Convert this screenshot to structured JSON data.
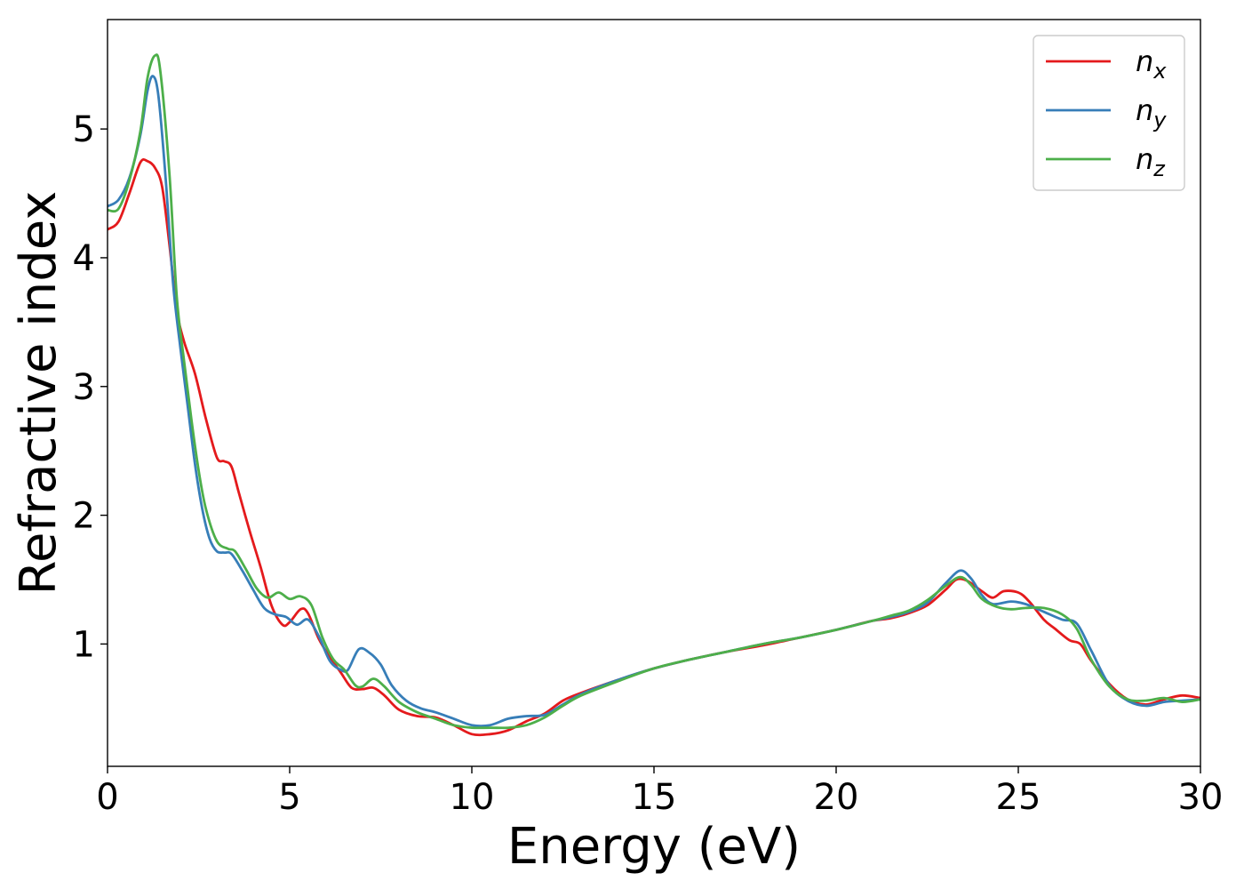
{
  "chart_data": {
    "type": "line",
    "title": "",
    "xlabel": "Energy (eV)",
    "ylabel": "Refractive index",
    "xlim": [
      0,
      30
    ],
    "ylim": [
      0.05,
      5.85
    ],
    "xticks": [
      0,
      5,
      10,
      15,
      20,
      25,
      30
    ],
    "yticks": [
      1,
      2,
      3,
      4,
      5
    ],
    "grid": false,
    "legend_position": "top-right",
    "series": [
      {
        "name": "n",
        "subscript": "x",
        "color": "#e41a1c",
        "points": [
          [
            0,
            4.22
          ],
          [
            0.3,
            4.28
          ],
          [
            0.6,
            4.5
          ],
          [
            0.9,
            4.74
          ],
          [
            1.1,
            4.75
          ],
          [
            1.3,
            4.7
          ],
          [
            1.5,
            4.55
          ],
          [
            1.7,
            4.1
          ],
          [
            1.9,
            3.6
          ],
          [
            2.1,
            3.35
          ],
          [
            2.4,
            3.1
          ],
          [
            2.7,
            2.75
          ],
          [
            3.0,
            2.45
          ],
          [
            3.2,
            2.42
          ],
          [
            3.4,
            2.38
          ],
          [
            3.6,
            2.18
          ],
          [
            3.9,
            1.88
          ],
          [
            4.2,
            1.6
          ],
          [
            4.5,
            1.3
          ],
          [
            4.8,
            1.15
          ],
          [
            5.0,
            1.17
          ],
          [
            5.3,
            1.27
          ],
          [
            5.5,
            1.24
          ],
          [
            5.8,
            1.04
          ],
          [
            6.1,
            0.9
          ],
          [
            6.4,
            0.78
          ],
          [
            6.7,
            0.66
          ],
          [
            7.0,
            0.65
          ],
          [
            7.3,
            0.66
          ],
          [
            7.6,
            0.6
          ],
          [
            8.0,
            0.49
          ],
          [
            8.5,
            0.44
          ],
          [
            9.0,
            0.43
          ],
          [
            9.5,
            0.37
          ],
          [
            10.0,
            0.3
          ],
          [
            10.5,
            0.3
          ],
          [
            11.0,
            0.33
          ],
          [
            11.5,
            0.4
          ],
          [
            12.0,
            0.46
          ],
          [
            12.5,
            0.56
          ],
          [
            13.0,
            0.62
          ],
          [
            14.0,
            0.72
          ],
          [
            15.0,
            0.81
          ],
          [
            16.0,
            0.88
          ],
          [
            17.0,
            0.94
          ],
          [
            18.0,
            0.99
          ],
          [
            19.0,
            1.05
          ],
          [
            20.0,
            1.11
          ],
          [
            21.0,
            1.18
          ],
          [
            21.5,
            1.2
          ],
          [
            22.0,
            1.24
          ],
          [
            22.5,
            1.3
          ],
          [
            23.0,
            1.42
          ],
          [
            23.3,
            1.5
          ],
          [
            23.6,
            1.49
          ],
          [
            24.0,
            1.41
          ],
          [
            24.3,
            1.36
          ],
          [
            24.6,
            1.41
          ],
          [
            25.0,
            1.4
          ],
          [
            25.3,
            1.33
          ],
          [
            25.7,
            1.19
          ],
          [
            26.0,
            1.12
          ],
          [
            26.4,
            1.03
          ],
          [
            26.7,
            1.0
          ],
          [
            27.0,
            0.87
          ],
          [
            27.5,
            0.69
          ],
          [
            28.0,
            0.57
          ],
          [
            28.5,
            0.53
          ],
          [
            29.0,
            0.57
          ],
          [
            29.5,
            0.6
          ],
          [
            30.0,
            0.58
          ]
        ]
      },
      {
        "name": "n",
        "subscript": "y",
        "color": "#377eb8",
        "points": [
          [
            0,
            4.4
          ],
          [
            0.3,
            4.45
          ],
          [
            0.6,
            4.62
          ],
          [
            0.9,
            4.95
          ],
          [
            1.1,
            5.3
          ],
          [
            1.25,
            5.41
          ],
          [
            1.4,
            5.25
          ],
          [
            1.6,
            4.6
          ],
          [
            1.8,
            3.8
          ],
          [
            2.0,
            3.3
          ],
          [
            2.2,
            2.85
          ],
          [
            2.4,
            2.4
          ],
          [
            2.6,
            2.05
          ],
          [
            2.8,
            1.82
          ],
          [
            3.0,
            1.72
          ],
          [
            3.2,
            1.71
          ],
          [
            3.4,
            1.7
          ],
          [
            3.7,
            1.57
          ],
          [
            4.0,
            1.42
          ],
          [
            4.3,
            1.28
          ],
          [
            4.6,
            1.23
          ],
          [
            4.9,
            1.21
          ],
          [
            5.2,
            1.15
          ],
          [
            5.5,
            1.19
          ],
          [
            5.8,
            1.06
          ],
          [
            6.1,
            0.87
          ],
          [
            6.4,
            0.8
          ],
          [
            6.6,
            0.8
          ],
          [
            6.9,
            0.96
          ],
          [
            7.2,
            0.93
          ],
          [
            7.5,
            0.84
          ],
          [
            7.8,
            0.68
          ],
          [
            8.2,
            0.56
          ],
          [
            8.6,
            0.5
          ],
          [
            9.0,
            0.47
          ],
          [
            9.5,
            0.42
          ],
          [
            10.0,
            0.37
          ],
          [
            10.5,
            0.37
          ],
          [
            11.0,
            0.42
          ],
          [
            11.5,
            0.44
          ],
          [
            12.0,
            0.45
          ],
          [
            12.5,
            0.53
          ],
          [
            13.0,
            0.61
          ],
          [
            14.0,
            0.72
          ],
          [
            15.0,
            0.81
          ],
          [
            16.0,
            0.88
          ],
          [
            17.0,
            0.94
          ],
          [
            18.0,
            1.0
          ],
          [
            19.0,
            1.05
          ],
          [
            20.0,
            1.11
          ],
          [
            21.0,
            1.18
          ],
          [
            21.5,
            1.21
          ],
          [
            22.0,
            1.25
          ],
          [
            22.5,
            1.32
          ],
          [
            23.0,
            1.47
          ],
          [
            23.4,
            1.57
          ],
          [
            23.7,
            1.51
          ],
          [
            24.0,
            1.38
          ],
          [
            24.3,
            1.31
          ],
          [
            24.8,
            1.33
          ],
          [
            25.2,
            1.31
          ],
          [
            25.7,
            1.25
          ],
          [
            26.2,
            1.19
          ],
          [
            26.6,
            1.16
          ],
          [
            27.0,
            0.95
          ],
          [
            27.5,
            0.68
          ],
          [
            28.0,
            0.56
          ],
          [
            28.5,
            0.52
          ],
          [
            29.0,
            0.55
          ],
          [
            29.5,
            0.56
          ],
          [
            30.0,
            0.57
          ]
        ]
      },
      {
        "name": "n",
        "subscript": "z",
        "color": "#4daf4a",
        "points": [
          [
            0,
            4.37
          ],
          [
            0.3,
            4.38
          ],
          [
            0.6,
            4.6
          ],
          [
            0.9,
            4.98
          ],
          [
            1.1,
            5.4
          ],
          [
            1.3,
            5.57
          ],
          [
            1.45,
            5.45
          ],
          [
            1.7,
            4.65
          ],
          [
            1.9,
            3.7
          ],
          [
            2.1,
            3.2
          ],
          [
            2.3,
            2.75
          ],
          [
            2.5,
            2.35
          ],
          [
            2.7,
            2.05
          ],
          [
            3.0,
            1.8
          ],
          [
            3.3,
            1.74
          ],
          [
            3.5,
            1.72
          ],
          [
            3.8,
            1.58
          ],
          [
            4.1,
            1.43
          ],
          [
            4.4,
            1.36
          ],
          [
            4.7,
            1.4
          ],
          [
            5.0,
            1.35
          ],
          [
            5.3,
            1.37
          ],
          [
            5.6,
            1.3
          ],
          [
            5.9,
            1.05
          ],
          [
            6.2,
            0.88
          ],
          [
            6.5,
            0.8
          ],
          [
            6.8,
            0.68
          ],
          [
            7.0,
            0.67
          ],
          [
            7.3,
            0.73
          ],
          [
            7.6,
            0.67
          ],
          [
            8.0,
            0.55
          ],
          [
            8.5,
            0.47
          ],
          [
            9.0,
            0.42
          ],
          [
            9.5,
            0.37
          ],
          [
            10.0,
            0.35
          ],
          [
            10.5,
            0.35
          ],
          [
            11.0,
            0.35
          ],
          [
            11.5,
            0.37
          ],
          [
            12.0,
            0.43
          ],
          [
            12.5,
            0.52
          ],
          [
            13.0,
            0.6
          ],
          [
            14.0,
            0.71
          ],
          [
            15.0,
            0.81
          ],
          [
            16.0,
            0.88
          ],
          [
            17.0,
            0.94
          ],
          [
            18.0,
            1.0
          ],
          [
            19.0,
            1.05
          ],
          [
            20.0,
            1.11
          ],
          [
            21.0,
            1.18
          ],
          [
            21.5,
            1.22
          ],
          [
            22.0,
            1.26
          ],
          [
            22.5,
            1.34
          ],
          [
            23.0,
            1.45
          ],
          [
            23.4,
            1.52
          ],
          [
            23.7,
            1.46
          ],
          [
            24.0,
            1.35
          ],
          [
            24.4,
            1.29
          ],
          [
            24.8,
            1.27
          ],
          [
            25.2,
            1.28
          ],
          [
            25.7,
            1.28
          ],
          [
            26.2,
            1.23
          ],
          [
            26.6,
            1.12
          ],
          [
            27.0,
            0.88
          ],
          [
            27.5,
            0.67
          ],
          [
            28.0,
            0.57
          ],
          [
            28.5,
            0.56
          ],
          [
            29.0,
            0.58
          ],
          [
            29.5,
            0.55
          ],
          [
            30.0,
            0.57
          ]
        ]
      }
    ]
  }
}
